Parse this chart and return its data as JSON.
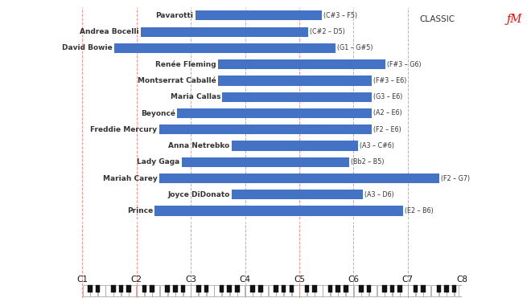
{
  "musicians": [
    {
      "name": "Pavarotti",
      "low": "C#3",
      "high": "F5",
      "label": "(C#3 – F5)"
    },
    {
      "name": "Andrea Bocelli",
      "low": "C#2",
      "high": "D5",
      "label": "(C#2 – D5)"
    },
    {
      "name": "David Bowie",
      "low": "G1",
      "high": "G#5",
      "label": "(G1 – G#5)"
    },
    {
      "name": "Renée Fleming",
      "low": "F#3",
      "high": "G6",
      "label": "(F#3 – G6)"
    },
    {
      "name": "Montserrat Caballé",
      "low": "F#3",
      "high": "E6",
      "label": "(F#3 – E6)"
    },
    {
      "name": "Maria Callas",
      "low": "G3",
      "high": "E6",
      "label": "(G3 – E6)"
    },
    {
      "name": "Beyoncé",
      "low": "A2",
      "high": "E6",
      "label": "(A2 – E6)"
    },
    {
      "name": "Freddie Mercury",
      "low": "F2",
      "high": "E6",
      "label": "(F2 – E6)"
    },
    {
      "name": "Anna Netrebko",
      "low": "A3",
      "high": "C#6",
      "label": "(A3 – C#6)"
    },
    {
      "name": "Lady Gaga",
      "low": "Bb2",
      "high": "B5",
      "label": "(Bb2 – B5)"
    },
    {
      "name": "Mariah Carey",
      "low": "F2",
      "high": "G7",
      "label": "(F2 – G7)"
    },
    {
      "name": "Joyce DiDonato",
      "low": "A3",
      "high": "D6",
      "label": "(A3 – D6)"
    },
    {
      "name": "Prince",
      "low": "E2",
      "high": "B6",
      "label": "(E2 – B6)"
    }
  ],
  "bar_color": "#4472C4",
  "bar_height": 0.6,
  "background_color": "#FFFFFF",
  "grid_color": "#FF8888",
  "label_color": "#333333",
  "octave_labels": [
    "C1",
    "C2",
    "C3",
    "C4",
    "C5",
    "C6",
    "C7",
    "C8"
  ],
  "white_key_color": "#FFFFFF",
  "black_key_color": "#111111",
  "key_border_color": "#999999"
}
